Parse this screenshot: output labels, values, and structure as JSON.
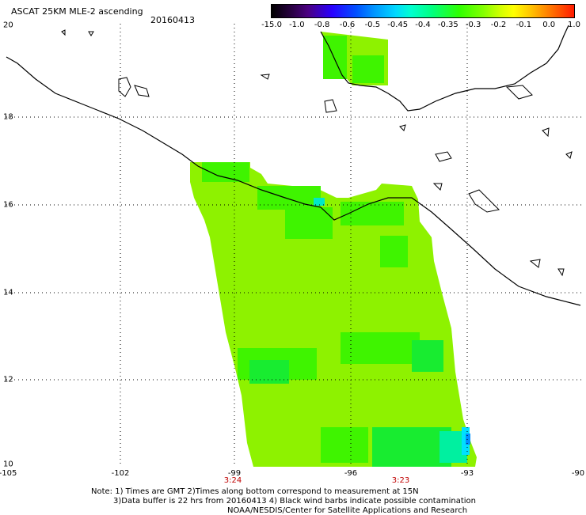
{
  "title": "ASCAT 25KM MLE-2 ascending",
  "date": "20160413",
  "colorbar": {
    "labels": [
      "-15.0",
      "-1.0",
      "-0.8",
      "-0.6",
      "-0.5",
      "-0.45",
      "-0.4",
      "-0.35",
      "-0.3",
      "-0.2",
      "-0.1",
      "0.0",
      "1.0"
    ]
  },
  "map": {
    "lat_labels": [
      "20",
      "18",
      "16",
      "14",
      "12",
      "10"
    ],
    "lon_labels": [
      "-105",
      "-102",
      "-99",
      "-96",
      "-93",
      "-90"
    ],
    "times": [
      "3:24",
      "3:23"
    ]
  },
  "notes": {
    "line1": "Note: 1) Times are GMT 2)Times along bottom correspond to measurement at 15N",
    "line2": "3)Data buffer is 22 hrs from 20160413 4) Black wind barbs indicate possible contamination",
    "line3": "NOAA/NESDIS/Center for Satellite Applications and Research"
  },
  "colors": {
    "swath_main": "#8ef200",
    "swath_green": "#3ff400",
    "swath_deep": "#18ec30",
    "swath_cyan": "#00e0ff",
    "coast": "#000000",
    "grid": "#000000"
  }
}
